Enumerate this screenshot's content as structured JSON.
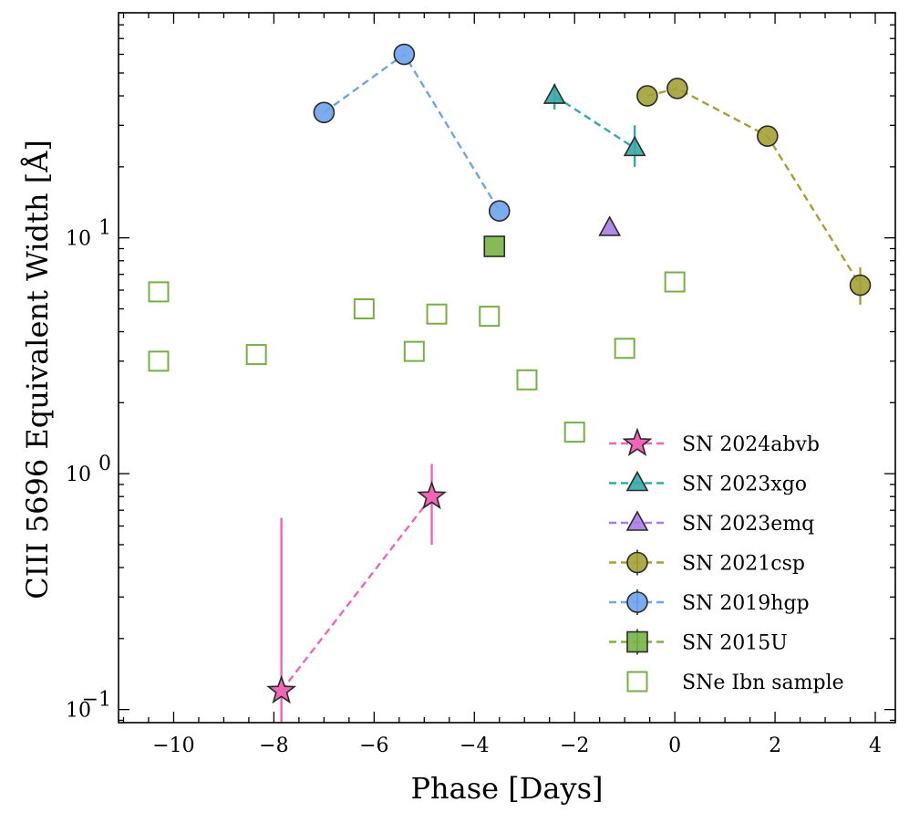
{
  "chart_data": {
    "type": "scatter",
    "xlabel": "Phase [Days]",
    "ylabel": "CIII 5696 Equivalent Width [Å]",
    "xlim": [
      -11.1,
      4.4
    ],
    "ylim": [
      0.088,
      90
    ],
    "yscale": "log",
    "xticks": [
      -10,
      -8,
      -6,
      -4,
      -2,
      0,
      2,
      4
    ],
    "xtick_labels": [
      "−10",
      "−8",
      "−6",
      "−4",
      "−2",
      "0",
      "2",
      "4"
    ],
    "yticks": [
      0.1,
      1,
      10
    ],
    "ytick_labels": [
      {
        "base": "10",
        "exp": "−1"
      },
      {
        "base": "10",
        "exp": "0"
      },
      {
        "base": "10",
        "exp": "1"
      }
    ],
    "grid": false,
    "legend_position": "lower-right",
    "series": [
      {
        "name": "SN 2024abvb",
        "marker": "star",
        "color": "#f065b4",
        "connected": true,
        "points": [
          {
            "x": -7.85,
            "y": 0.12,
            "ylo": 0.05,
            "yhi": 0.65
          },
          {
            "x": -4.85,
            "y": 0.8,
            "ylo": 0.5,
            "yhi": 1.1
          }
        ]
      },
      {
        "name": "SN 2023xgo",
        "marker": "triangle",
        "color": "#36a9a9",
        "connected": true,
        "points": [
          {
            "x": -2.4,
            "y": 40,
            "ylo": 35,
            "yhi": 45
          },
          {
            "x": -0.8,
            "y": 24,
            "ylo": 20,
            "yhi": 30
          }
        ]
      },
      {
        "name": "SN 2023emq",
        "marker": "triangle",
        "color": "#a77ce8",
        "connected": true,
        "points": [
          {
            "x": -1.3,
            "y": 11
          }
        ]
      },
      {
        "name": "SN 2021csp",
        "marker": "circle",
        "color": "#a3a235",
        "connected": true,
        "points": [
          {
            "x": -0.55,
            "y": 40
          },
          {
            "x": 0.05,
            "y": 43
          },
          {
            "x": 1.85,
            "y": 27
          },
          {
            "x": 3.7,
            "y": 6.3,
            "ylo": 5.2,
            "yhi": 7.5
          }
        ]
      },
      {
        "name": "SN 2019hgp",
        "marker": "circle",
        "color": "#6ea3ee",
        "connected": true,
        "points": [
          {
            "x": -7.0,
            "y": 34
          },
          {
            "x": -5.4,
            "y": 60
          },
          {
            "x": -3.5,
            "y": 13
          }
        ]
      },
      {
        "name": "SN 2015U",
        "marker": "square",
        "color": "#79b345",
        "connected": true,
        "points": [
          {
            "x": -3.6,
            "y": 9.2
          }
        ]
      },
      {
        "name": "SNe Ibn sample",
        "marker": "open-square",
        "color": "#76b043",
        "connected": false,
        "points": [
          {
            "x": -10.3,
            "y": 5.9
          },
          {
            "x": -10.3,
            "y": 3.0
          },
          {
            "x": -8.35,
            "y": 3.2
          },
          {
            "x": -6.2,
            "y": 5.0
          },
          {
            "x": -5.2,
            "y": 3.3
          },
          {
            "x": -4.75,
            "y": 4.75
          },
          {
            "x": -3.7,
            "y": 4.65
          },
          {
            "x": -2.95,
            "y": 2.5
          },
          {
            "x": -2.0,
            "y": 1.5
          },
          {
            "x": -1.0,
            "y": 3.4
          },
          {
            "x": 0.0,
            "y": 6.5
          }
        ]
      }
    ]
  }
}
